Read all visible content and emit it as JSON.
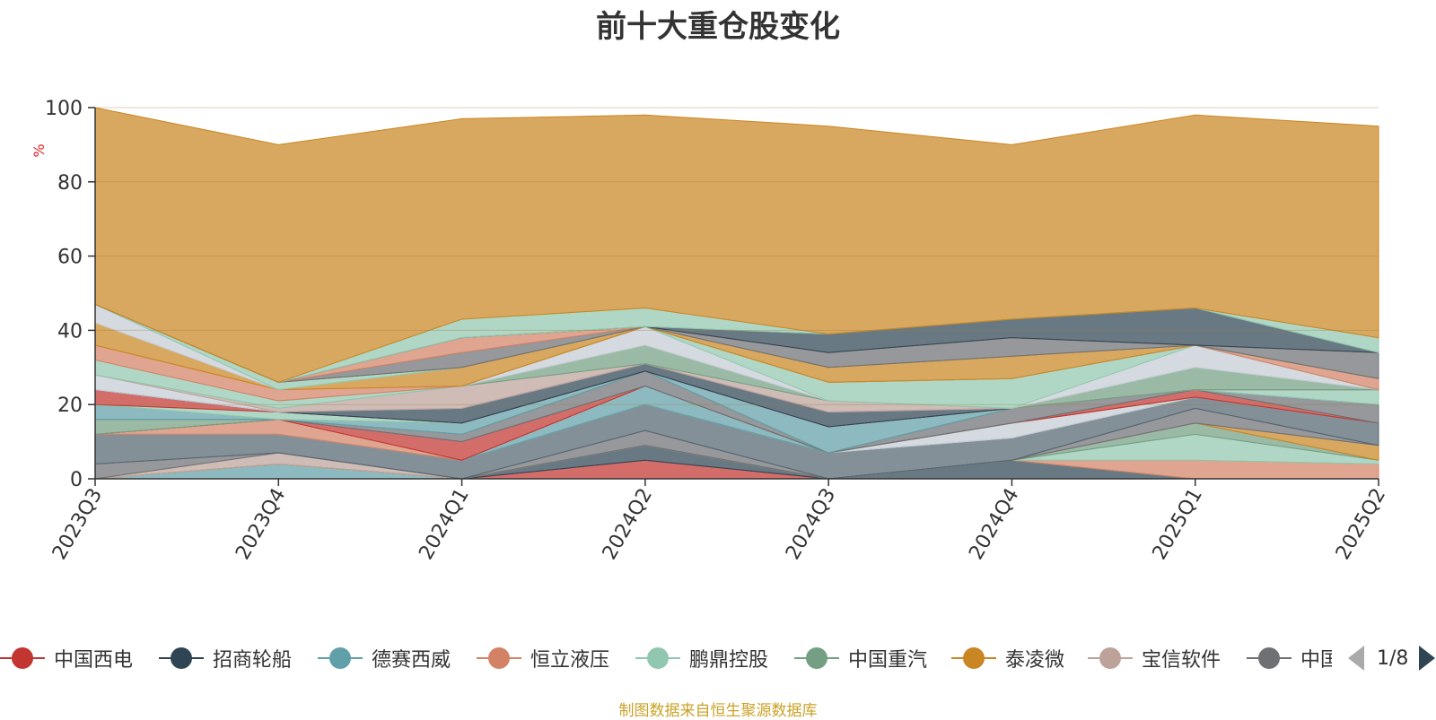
{
  "chart_data": {
    "type": "area",
    "stacked": true,
    "title": "前十大重仓股变化",
    "ylabel": "%",
    "ylim": [
      0,
      100
    ],
    "yticks": [
      0,
      20,
      40,
      60,
      80,
      100
    ],
    "grid": true,
    "legend_position": "bottom",
    "categories": [
      "2023Q3",
      "2023Q4",
      "2024Q1",
      "2024Q2",
      "2024Q3",
      "2024Q4",
      "2025Q1",
      "2025Q2"
    ],
    "series": [
      {
        "name": "中国西电",
        "color": "#c23531",
        "values": [
          0,
          0,
          0,
          5,
          0,
          0,
          0,
          0
        ]
      },
      {
        "name": "招商轮船",
        "color": "#2f4554",
        "values": [
          0,
          0,
          0,
          4,
          0,
          5,
          0,
          0
        ]
      },
      {
        "name": "德赛西威",
        "color": "#61a0a8",
        "values": [
          0,
          4,
          0,
          0,
          0,
          0,
          0,
          0
        ]
      },
      {
        "name": "恒立液压",
        "color": "#d48265",
        "values": [
          0,
          0,
          0,
          0,
          0,
          0,
          5,
          4
        ]
      },
      {
        "name": "鹏鼎控股",
        "color": "#91c7ae",
        "values": [
          0,
          0,
          0,
          0,
          0,
          0,
          7,
          1
        ]
      },
      {
        "name": "中国重汽",
        "color": "#749f83",
        "values": [
          0,
          0,
          0,
          0,
          0,
          0,
          3,
          0
        ]
      },
      {
        "name": "泰凌微",
        "color": "#ca8622",
        "values": [
          0,
          0,
          0,
          0,
          0,
          0,
          0,
          4
        ]
      },
      {
        "name": "宝信软件",
        "color": "#bda29a",
        "values": [
          0,
          3,
          0,
          0,
          0,
          0,
          0,
          0
        ]
      },
      {
        "name": "中国",
        "color": "#6e7074",
        "values": [
          4,
          0,
          0,
          4,
          0,
          0,
          4,
          0
        ]
      },
      {
        "name": "",
        "color": "#546570",
        "values": [
          8,
          5,
          5,
          7,
          7,
          6,
          3,
          6
        ]
      },
      {
        "name": "",
        "color": "#c4ccd3",
        "values": [
          0,
          0,
          0,
          0,
          0,
          4,
          0,
          0
        ]
      },
      {
        "name": "",
        "color": "#61a0a8",
        "values": [
          0,
          0,
          0,
          5,
          0,
          0,
          0,
          0
        ]
      },
      {
        "name": "",
        "color": "#d48265",
        "values": [
          0,
          4,
          0,
          0,
          0,
          0,
          0,
          0
        ]
      },
      {
        "name": "",
        "color": "#c23531",
        "values": [
          0,
          0,
          5,
          0,
          0,
          0,
          2,
          0
        ]
      },
      {
        "name": "",
        "color": "#749f83",
        "values": [
          4,
          0,
          0,
          0,
          0,
          0,
          0,
          0
        ]
      },
      {
        "name": "",
        "color": "#6e7074",
        "values": [
          0,
          0,
          2,
          4,
          0,
          4,
          0,
          5
        ]
      },
      {
        "name": "",
        "color": "#61a0a8",
        "values": [
          4,
          0,
          3,
          0,
          7,
          0,
          0,
          0
        ]
      },
      {
        "name": "",
        "color": "#91c7ae",
        "values": [
          0,
          2,
          0,
          0,
          0,
          0,
          0,
          4
        ]
      },
      {
        "name": "",
        "color": "#c23531",
        "values": [
          4,
          0,
          0,
          0,
          0,
          0,
          0,
          0
        ]
      },
      {
        "name": "",
        "color": "#2f4554",
        "values": [
          0,
          0,
          4,
          2,
          4,
          0,
          0,
          0
        ]
      },
      {
        "name": "",
        "color": "#c4ccd3",
        "values": [
          4,
          0,
          0,
          0,
          0,
          0,
          0,
          0
        ]
      },
      {
        "name": "",
        "color": "#bda29a",
        "values": [
          0,
          1,
          6,
          0,
          3,
          0,
          0,
          0
        ]
      },
      {
        "name": "",
        "color": "#749f83",
        "values": [
          0,
          0,
          0,
          5,
          0,
          0,
          6,
          0
        ]
      },
      {
        "name": "",
        "color": "#c4ccd3",
        "values": [
          0,
          0,
          0,
          5,
          0,
          0,
          6,
          0
        ]
      },
      {
        "name": "",
        "color": "#91c7ae",
        "values": [
          4,
          2,
          0,
          0,
          5,
          8,
          0,
          0
        ]
      },
      {
        "name": "",
        "color": "#d48265",
        "values": [
          4,
          3,
          0,
          0,
          0,
          0,
          0,
          3
        ]
      },
      {
        "name": "",
        "color": "#ca8622",
        "values": [
          6,
          0,
          5,
          0,
          0,
          0,
          0,
          0
        ]
      },
      {
        "name": "",
        "color": "#c4ccd3",
        "values": [
          5,
          0,
          0,
          0,
          0,
          0,
          0,
          0
        ]
      },
      {
        "name": "",
        "color": "#91c7ae",
        "values": [
          0,
          2,
          0,
          0,
          0,
          0,
          0,
          0
        ]
      },
      {
        "name": "",
        "color": "#ca8622",
        "values": [
          0,
          0,
          0,
          0,
          4,
          6,
          0,
          0
        ]
      },
      {
        "name": "",
        "color": "#6e7074",
        "values": [
          0,
          0,
          4,
          0,
          4,
          5,
          0,
          7
        ]
      },
      {
        "name": "",
        "color": "#d48265",
        "values": [
          0,
          0,
          4,
          0,
          0,
          0,
          0,
          0
        ]
      },
      {
        "name": "",
        "color": "#2f4554",
        "values": [
          0,
          0,
          0,
          0,
          5,
          5,
          10,
          0
        ]
      },
      {
        "name": "",
        "color": "#91c7ae",
        "values": [
          0,
          0,
          5,
          5,
          0,
          0,
          0,
          4
        ]
      },
      {
        "name": "",
        "color": "#ca8622",
        "values": [
          53,
          64,
          54,
          52,
          56,
          47,
          52,
          57
        ]
      }
    ]
  },
  "legend": {
    "items": [
      "中国西电",
      "招商轮船",
      "德赛西威",
      "恒立液压",
      "鹏鼎控股",
      "中国重汽",
      "泰凌微",
      "宝信软件",
      "中国"
    ],
    "colors": [
      "#c23531",
      "#2f4554",
      "#61a0a8",
      "#d48265",
      "#91c7ae",
      "#749f83",
      "#ca8622",
      "#bda29a",
      "#6e7074"
    ],
    "page_indicator": "1/8"
  },
  "source_note": "制图数据来自恒生聚源数据库"
}
